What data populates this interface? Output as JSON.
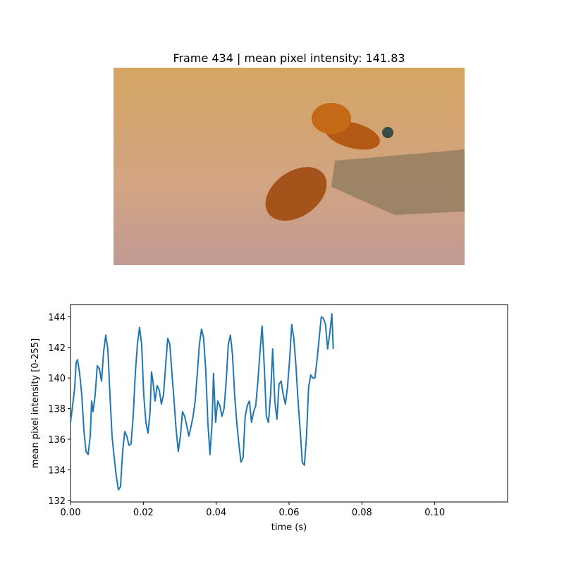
{
  "chart_data": {
    "type": "line",
    "title": "Frame 434 | mean pixel intensity: 141.83",
    "x_label": "time (s)",
    "y_label": "mean pixel intensity [0-255]",
    "xlim": [
      0,
      0.12
    ],
    "ylim": [
      131.9,
      144.8
    ],
    "xticks": [
      {
        "value": 0,
        "label": "0.00"
      },
      0.02,
      0.04,
      0.06,
      0.08,
      {
        "value": 0.1,
        "label": "0.10"
      }
    ],
    "yticks": [
      132,
      134,
      136,
      138,
      140,
      142,
      144
    ],
    "x": [
      0,
      0.00058,
      0.00116,
      0.00155,
      0.00193,
      0.00251,
      0.00309,
      0.00367,
      0.00425,
      0.00484,
      0.00542,
      0.0058,
      0.00619,
      0.00677,
      0.00735,
      0.00793,
      0.00851,
      0.00909,
      0.00967,
      0.01025,
      0.01083,
      0.01141,
      0.01199,
      0.01257,
      0.01315,
      0.01373,
      0.01431,
      0.01489,
      0.01547,
      0.01605,
      0.01663,
      0.01721,
      0.01779,
      0.01837,
      0.01895,
      0.01953,
      0.02011,
      0.0207,
      0.02127,
      0.02185,
      0.02224,
      0.02263,
      0.02321,
      0.02379,
      0.02437,
      0.02495,
      0.02553,
      0.02611,
      0.02669,
      0.02727,
      0.02785,
      0.02843,
      0.02901,
      0.02959,
      0.03017,
      0.03075,
      0.03133,
      0.03191,
      0.03249,
      0.03307,
      0.03365,
      0.03423,
      0.03481,
      0.03539,
      0.03597,
      0.03655,
      0.03713,
      0.03771,
      0.03829,
      0.03887,
      0.03926,
      0.03984,
      0.04042,
      0.041,
      0.04158,
      0.04216,
      0.04274,
      0.04332,
      0.0439,
      0.04448,
      0.04506,
      0.04564,
      0.04622,
      0.0468,
      0.04738,
      0.04796,
      0.04854,
      0.04912,
      0.0497,
      0.05028,
      0.05086,
      0.05144,
      0.05202,
      0.0526,
      0.05319,
      0.05377,
      0.05435,
      0.05493,
      0.05551,
      0.05609,
      0.05667,
      0.05725,
      0.05783,
      0.05841,
      0.05899,
      0.05957,
      0.06015,
      0.06073,
      0.06131,
      0.06189,
      0.06247,
      0.06305,
      0.06363,
      0.06421,
      0.06479,
      0.06537,
      0.06595,
      0.06653,
      0.06711,
      0.06769,
      0.06827,
      0.06885,
      0.06943,
      0.07001,
      0.07059,
      0.07117,
      0.07175,
      0.07214
    ],
    "series": [
      {
        "color": "#1f77b4",
        "values": [
          137.1,
          138.2,
          139.4,
          141.0,
          141.2,
          140.3,
          138.9,
          136.6,
          135.2,
          135.0,
          136.2,
          138.5,
          137.8,
          138.9,
          140.8,
          140.6,
          139.8,
          141.7,
          142.8,
          141.9,
          138.9,
          136.2,
          134.8,
          133.6,
          132.7,
          132.9,
          135.2,
          136.5,
          136.2,
          135.6,
          135.7,
          137.5,
          140.3,
          142.2,
          143.3,
          142.2,
          138.9,
          137.1,
          136.4,
          137.8,
          140.4,
          139.8,
          138.5,
          139.5,
          139.2,
          138.3,
          138.9,
          140.8,
          142.6,
          142.2,
          140.3,
          138.5,
          136.6,
          135.2,
          136.2,
          137.8,
          137.5,
          136.9,
          136.2,
          136.8,
          137.5,
          138.5,
          140.3,
          142.2,
          143.2,
          142.6,
          140.5,
          137.1,
          135.0,
          137.1,
          140.3,
          137.1,
          138.5,
          138.2,
          137.5,
          138.0,
          139.8,
          142.2,
          142.8,
          141.5,
          138.9,
          137.1,
          135.7,
          134.5,
          134.8,
          137.5,
          138.2,
          138.5,
          137.1,
          137.8,
          138.2,
          139.8,
          141.7,
          143.4,
          140.8,
          137.5,
          137.1,
          138.9,
          141.9,
          138.5,
          137.3,
          139.6,
          139.8,
          138.9,
          138.3,
          139.4,
          141.2,
          143.5,
          142.6,
          140.8,
          138.5,
          136.6,
          134.5,
          134.3,
          136.2,
          139.4,
          140.2,
          140.0,
          140.0,
          141.2,
          142.6,
          144.0,
          143.9,
          143.5,
          141.9,
          142.9,
          144.2,
          141.9
        ]
      }
    ]
  }
}
